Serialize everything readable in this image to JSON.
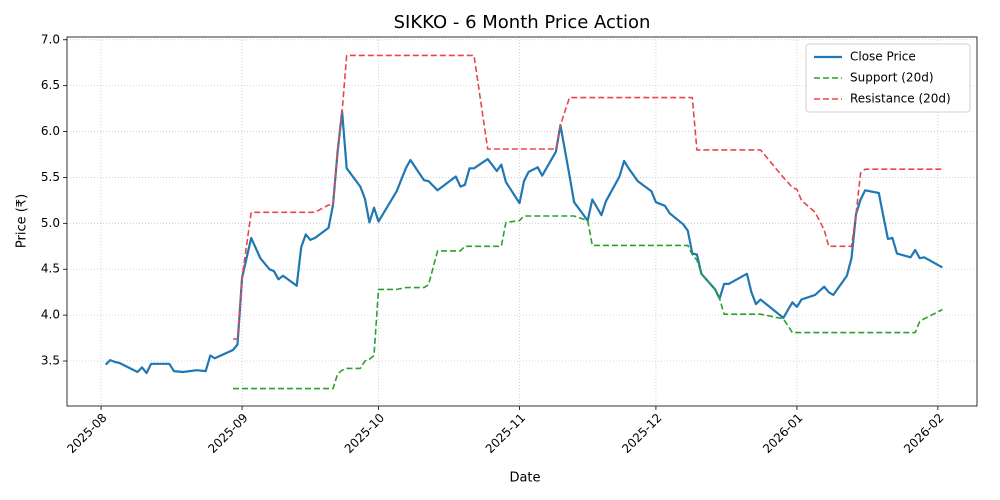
{
  "chart_data": {
    "type": "line",
    "title": "SIKKO - 6 Month Price Action",
    "xlabel": "Date",
    "ylabel": "Price (₹)",
    "x": [
      20302,
      20303,
      20304,
      20305,
      20309,
      20310,
      20311,
      20312,
      20316,
      20317,
      20319,
      20322,
      20324,
      20325,
      20326,
      20330,
      20331,
      20332,
      20334,
      20336,
      20338,
      20339,
      20340,
      20341,
      20344,
      20345,
      20346,
      20347,
      20348,
      20351,
      20352,
      20353,
      20354,
      20355,
      20358,
      20359,
      20360,
      20361,
      20362,
      20366,
      20368,
      20369,
      20372,
      20373,
      20375,
      20379,
      20380,
      20381,
      20382,
      20383,
      20386,
      20388,
      20389,
      20390,
      20393,
      20394,
      20395,
      20397,
      20398,
      20401,
      20402,
      20404,
      20405,
      20408,
      20409,
      20411,
      20412,
      20415,
      20416,
      20417,
      20419,
      20422,
      20423,
      20425,
      20426,
      20429,
      20430,
      20431,
      20432,
      20433,
      20436,
      20437,
      20438,
      20439,
      20443,
      20444,
      20445,
      20446,
      20451,
      20453,
      20454,
      20455,
      20458,
      20460,
      20461,
      20462,
      20465,
      20466,
      20467,
      20468,
      20469,
      20472,
      20473,
      20474,
      20475,
      20476,
      20479,
      20480,
      20481,
      20482,
      20486
    ],
    "series": [
      {
        "name": "Close Price",
        "color": "#1f77b4",
        "linestyle": "solid",
        "values": [
          3.46,
          3.51,
          3.49,
          3.48,
          3.38,
          3.43,
          3.37,
          3.47,
          3.47,
          3.39,
          3.38,
          3.4,
          3.39,
          3.56,
          3.53,
          3.62,
          3.68,
          4.41,
          4.84,
          4.62,
          4.5,
          4.48,
          4.39,
          4.43,
          4.32,
          4.74,
          4.88,
          4.82,
          4.84,
          4.95,
          5.2,
          5.78,
          6.22,
          5.6,
          5.4,
          5.27,
          5.01,
          5.17,
          5.02,
          5.35,
          5.6,
          5.69,
          5.47,
          5.46,
          5.36,
          5.51,
          5.4,
          5.42,
          5.6,
          5.6,
          5.7,
          5.57,
          5.64,
          5.45,
          5.22,
          5.46,
          5.56,
          5.61,
          5.52,
          5.78,
          6.07,
          5.52,
          5.23,
          5.03,
          5.26,
          5.09,
          5.24,
          5.51,
          5.68,
          5.6,
          5.46,
          5.35,
          5.23,
          5.19,
          5.11,
          4.99,
          4.92,
          4.67,
          4.66,
          4.45,
          4.28,
          4.18,
          4.34,
          4.34,
          4.45,
          4.25,
          4.12,
          4.17,
          3.97,
          4.14,
          4.09,
          4.17,
          4.22,
          4.31,
          4.25,
          4.22,
          4.43,
          4.62,
          5.1,
          5.26,
          5.36,
          5.33,
          5.08,
          4.83,
          4.84,
          4.67,
          4.63,
          4.71,
          4.62,
          4.63,
          4.52
        ]
      },
      {
        "name": "Support (20d)",
        "color": "#2ca02c",
        "linestyle": "dashed",
        "values": [
          null,
          null,
          null,
          null,
          null,
          null,
          null,
          null,
          null,
          null,
          null,
          null,
          null,
          null,
          null,
          3.2,
          3.2,
          3.2,
          3.2,
          3.2,
          3.2,
          3.2,
          3.2,
          3.2,
          3.2,
          3.2,
          3.2,
          3.2,
          3.2,
          3.2,
          3.2,
          3.36,
          3.4,
          3.42,
          3.42,
          3.5,
          3.52,
          3.56,
          4.28,
          4.28,
          4.3,
          4.3,
          4.3,
          4.33,
          4.7,
          4.7,
          4.7,
          4.75,
          4.75,
          4.75,
          4.75,
          4.75,
          4.75,
          5.01,
          5.03,
          5.08,
          5.08,
          5.08,
          5.08,
          5.08,
          5.08,
          5.08,
          5.08,
          5.03,
          4.76,
          4.76,
          4.76,
          4.76,
          4.76,
          4.76,
          4.76,
          4.76,
          4.76,
          4.76,
          4.76,
          4.76,
          4.76,
          4.66,
          4.6,
          4.45,
          4.28,
          4.18,
          4.01,
          4.01,
          4.01,
          4.01,
          4.01,
          4.01,
          3.96,
          3.81,
          3.81,
          3.81,
          3.81,
          3.81,
          3.81,
          3.81,
          3.81,
          3.81,
          3.81,
          3.81,
          3.81,
          3.81,
          3.81,
          3.81,
          3.81,
          3.81,
          3.81,
          3.81,
          3.93,
          3.96,
          4.06
        ]
      },
      {
        "name": "Resistance (20d)",
        "color": "#e8474a",
        "linestyle": "dashed",
        "values": [
          null,
          null,
          null,
          null,
          null,
          null,
          null,
          null,
          null,
          null,
          null,
          null,
          null,
          null,
          null,
          3.74,
          3.74,
          4.41,
          5.12,
          5.12,
          5.12,
          5.12,
          5.12,
          5.12,
          5.12,
          5.12,
          5.12,
          5.12,
          5.12,
          5.2,
          5.2,
          5.78,
          6.22,
          6.83,
          6.83,
          6.83,
          6.83,
          6.83,
          6.83,
          6.83,
          6.83,
          6.83,
          6.83,
          6.83,
          6.83,
          6.83,
          6.83,
          6.83,
          6.83,
          6.83,
          5.81,
          5.81,
          5.81,
          5.81,
          5.81,
          5.81,
          5.81,
          5.81,
          5.81,
          5.81,
          6.07,
          6.37,
          6.37,
          6.37,
          6.37,
          6.37,
          6.37,
          6.37,
          6.37,
          6.37,
          6.37,
          6.37,
          6.37,
          6.37,
          6.37,
          6.37,
          6.37,
          6.37,
          5.8,
          5.8,
          5.8,
          5.8,
          5.8,
          5.8,
          5.8,
          5.8,
          5.8,
          5.8,
          5.5,
          5.39,
          5.37,
          5.25,
          5.12,
          4.93,
          4.75,
          4.75,
          4.75,
          4.75,
          5.1,
          5.55,
          5.59,
          5.59,
          5.59,
          5.59,
          5.59,
          5.59,
          5.59,
          5.59,
          5.59,
          5.59,
          5.59
        ]
      }
    ],
    "xlim": [
      20293.5,
      20493.6
    ],
    "xticks": [
      {
        "value": 20301,
        "label": "2025-08"
      },
      {
        "value": 20332,
        "label": "2025-09"
      },
      {
        "value": 20362,
        "label": "2025-10"
      },
      {
        "value": 20393,
        "label": "2025-11"
      },
      {
        "value": 20423,
        "label": "2025-12"
      },
      {
        "value": 20454,
        "label": "2026-01"
      },
      {
        "value": 20485,
        "label": "2026-02"
      }
    ],
    "ylim": [
      3.01,
      7.03
    ],
    "yticks": [
      3.5,
      {
        "value": 4,
        "label": "4.0"
      },
      4.5,
      {
        "value": 5,
        "label": "5.0"
      },
      5.5,
      {
        "value": 6,
        "label": "6.0"
      },
      6.5,
      {
        "value": 7,
        "label": "7.0"
      }
    ],
    "grid": true,
    "legend": "upper right"
  }
}
